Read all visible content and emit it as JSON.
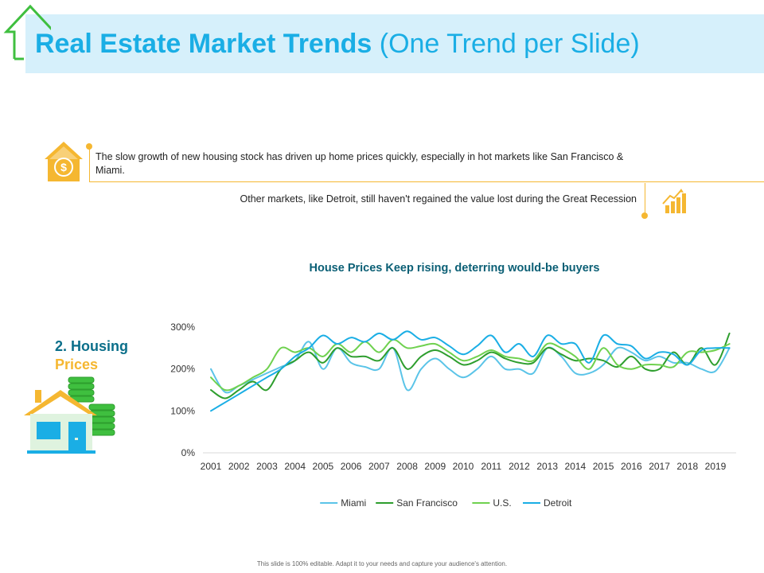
{
  "slide": {
    "title_bold": "Real Estate Market Trends",
    "title_light": "(One Trend per Slide)",
    "insight_1": "The slow growth of new housing stock has driven up home prices quickly, especially in hot markets like San Francisco & Miami.",
    "insight_2": "Other markets, like Detroit, still haven't regained the value lost during the Great Recession",
    "section_number": "2. Housing",
    "section_name": "Prices",
    "footer": "This slide is 100% editable. Adapt it to your needs and capture your audience's attention."
  },
  "colors": {
    "title": "#1aaee5",
    "title_bar": "#d6f0fb",
    "accent_orange": "#f5b731",
    "section_blue": "#0b6f8a",
    "chart_title": "#0b5f75"
  },
  "icons": {
    "title_house": "house-outline-icon",
    "insight_1": "dollar-house-icon",
    "insight_2": "growth-chart-icon",
    "section": "house-with-coins-icon"
  },
  "chart_data": {
    "type": "line",
    "title": "House Prices Keep rising, deterring would-be buyers",
    "xlabel": "",
    "ylabel": "",
    "categories": [
      "2001",
      "2002",
      "2003",
      "2004",
      "2005",
      "2006",
      "2007",
      "2008",
      "2009",
      "2010",
      "2011",
      "2012",
      "2013",
      "2014",
      "2015",
      "2016",
      "2017",
      "2018",
      "2019"
    ],
    "ylim": [
      0,
      300
    ],
    "yticks": [
      "0%",
      "100%",
      "200%",
      "300%"
    ],
    "ytick_values": [
      0,
      100,
      200,
      300
    ],
    "grid": false,
    "legend": "bottom",
    "series": [
      {
        "name": "Miami",
        "color": "#5bc4e8",
        "x": [
          2001,
          2001.5,
          2002,
          2002.5,
          2003,
          2003.5,
          2004,
          2004.5,
          2005,
          2005.5,
          2006,
          2006.5,
          2007,
          2007.5,
          2008,
          2008.5,
          2009,
          2009.5,
          2010,
          2010.5,
          2011,
          2011.5,
          2012,
          2012.5,
          2013,
          2013.5,
          2014,
          2014.5,
          2015,
          2015.5,
          2016,
          2016.5,
          2017,
          2017.5,
          2018,
          2018.5,
          2019,
          2019.5
        ],
        "values": [
          200,
          145,
          160,
          175,
          190,
          205,
          220,
          265,
          200,
          250,
          215,
          205,
          200,
          250,
          150,
          200,
          225,
          200,
          180,
          200,
          230,
          200,
          200,
          190,
          250,
          230,
          190,
          190,
          210,
          250,
          240,
          220,
          230,
          215,
          215,
          200,
          195,
          250
        ]
      },
      {
        "name": "San Francisco",
        "color": "#2e9e2e",
        "x": [
          2001,
          2001.5,
          2002,
          2002.5,
          2003,
          2003.5,
          2004,
          2004.5,
          2005,
          2005.5,
          2006,
          2006.5,
          2007,
          2007.5,
          2008,
          2008.5,
          2009,
          2009.5,
          2010,
          2010.5,
          2011,
          2011.5,
          2012,
          2012.5,
          2013,
          2013.5,
          2014,
          2014.5,
          2015,
          2015.5,
          2016,
          2016.5,
          2017,
          2017.5,
          2018,
          2018.5,
          2019,
          2019.5
        ],
        "values": [
          150,
          130,
          150,
          170,
          150,
          200,
          220,
          240,
          215,
          250,
          230,
          230,
          220,
          250,
          200,
          230,
          245,
          230,
          210,
          220,
          240,
          225,
          215,
          215,
          250,
          235,
          220,
          225,
          220,
          205,
          230,
          200,
          200,
          240,
          210,
          250,
          210,
          285
        ]
      },
      {
        "name": "U.S.",
        "color": "#6fd14f",
        "x": [
          2001,
          2001.5,
          2002,
          2002.5,
          2003,
          2003.5,
          2004,
          2004.5,
          2005,
          2005.5,
          2006,
          2006.5,
          2007,
          2007.5,
          2008,
          2008.5,
          2009,
          2009.5,
          2010,
          2010.5,
          2011,
          2011.5,
          2012,
          2012.5,
          2013,
          2013.5,
          2014,
          2014.5,
          2015,
          2015.5,
          2016,
          2016.5,
          2017,
          2017.5,
          2018,
          2018.5,
          2019,
          2019.5
        ],
        "values": [
          180,
          150,
          160,
          180,
          200,
          250,
          240,
          250,
          230,
          260,
          240,
          265,
          240,
          270,
          250,
          255,
          260,
          240,
          220,
          230,
          245,
          230,
          225,
          220,
          260,
          250,
          230,
          200,
          250,
          210,
          200,
          210,
          210,
          205,
          240,
          240,
          245,
          260
        ]
      },
      {
        "name": "Detroit",
        "color": "#1aaee5",
        "x": [
          2001,
          2001.5,
          2002,
          2002.5,
          2003,
          2003.5,
          2004,
          2004.5,
          2005,
          2005.5,
          2006,
          2006.5,
          2007,
          2007.5,
          2008,
          2008.5,
          2009,
          2009.5,
          2010,
          2010.5,
          2011,
          2011.5,
          2012,
          2012.5,
          2013,
          2013.5,
          2014,
          2014.5,
          2015,
          2015.5,
          2016,
          2016.5,
          2017,
          2017.5,
          2018,
          2018.5,
          2019,
          2019.5
        ],
        "values": [
          100,
          120,
          140,
          160,
          180,
          200,
          230,
          250,
          280,
          260,
          275,
          265,
          285,
          270,
          290,
          270,
          275,
          255,
          235,
          255,
          280,
          240,
          260,
          230,
          280,
          260,
          260,
          215,
          280,
          260,
          255,
          225,
          240,
          235,
          210,
          245,
          250,
          250
        ]
      }
    ]
  }
}
